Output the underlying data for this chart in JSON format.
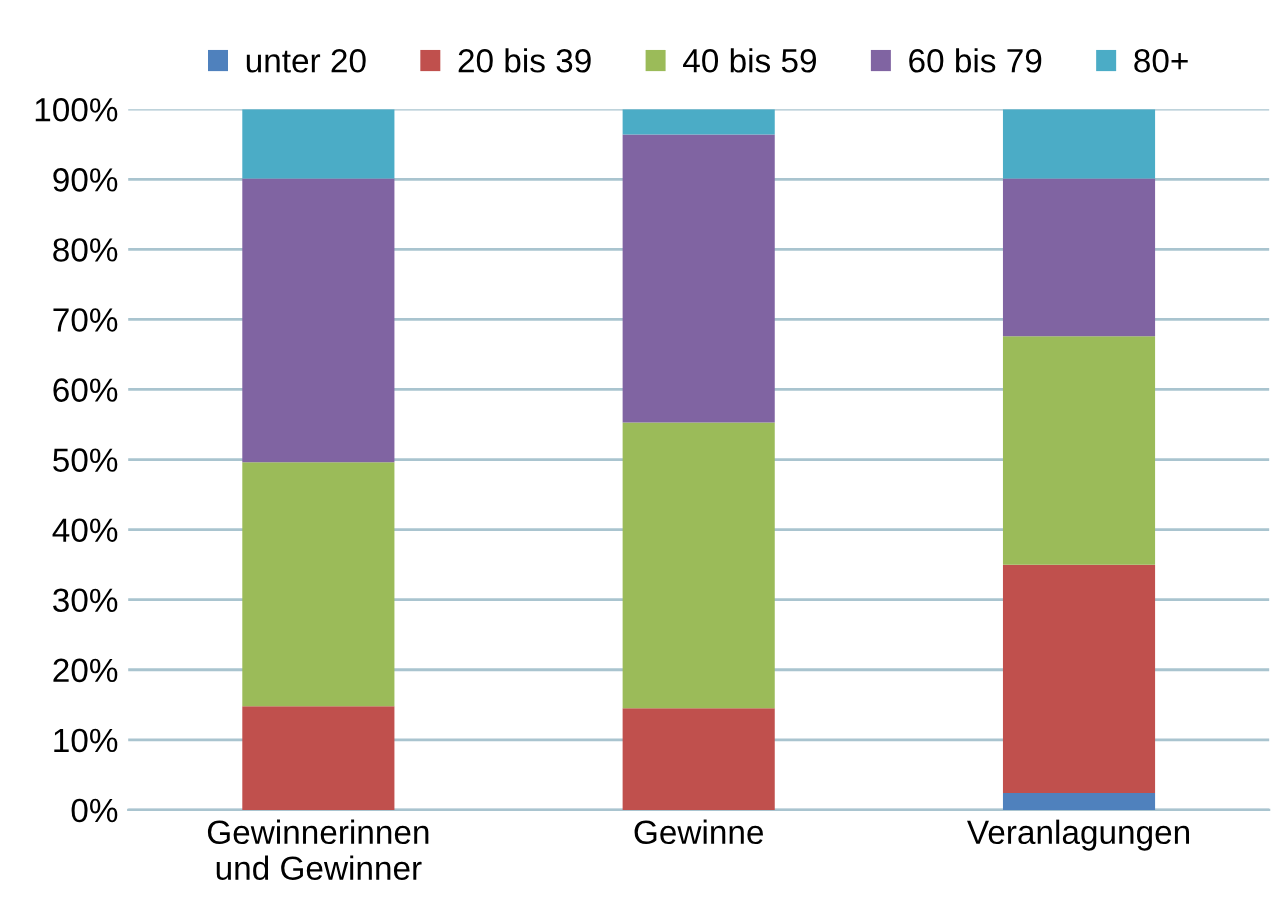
{
  "chart_data": {
    "type": "bar",
    "stacked": true,
    "categories": [
      "Gewinnerinnen\nund Gewinner",
      "Gewinne",
      "Veranlagungen"
    ],
    "series": [
      {
        "name": "unter 20",
        "color": "#4f81bd",
        "values": [
          0,
          0,
          2.4
        ]
      },
      {
        "name": "20 bis 39",
        "color": "#c0504d",
        "values": [
          14.8,
          14.5,
          32.6
        ]
      },
      {
        "name": "40 bis 59",
        "color": "#9bbb59",
        "values": [
          34.8,
          40.8,
          32.6
        ]
      },
      {
        "name": "60 bis 79",
        "color": "#8064a2",
        "values": [
          40.5,
          41.1,
          22.5
        ]
      },
      {
        "name": "80+",
        "color": "#4bacc6",
        "values": [
          9.9,
          3.6,
          9.9
        ]
      }
    ],
    "ylim": [
      0,
      100
    ],
    "yticks": [
      {
        "value": 0,
        "label": "0%"
      },
      {
        "value": 10,
        "label": "10%"
      },
      {
        "value": 20,
        "label": "20%"
      },
      {
        "value": 30,
        "label": "30%"
      },
      {
        "value": 40,
        "label": "40%"
      },
      {
        "value": 50,
        "label": "50%"
      },
      {
        "value": 60,
        "label": "60%"
      },
      {
        "value": 70,
        "label": "70%"
      },
      {
        "value": 80,
        "label": "80%"
      },
      {
        "value": 90,
        "label": "90%"
      },
      {
        "value": 100,
        "label": "100%"
      }
    ],
    "grid": "y",
    "legend": "top"
  }
}
